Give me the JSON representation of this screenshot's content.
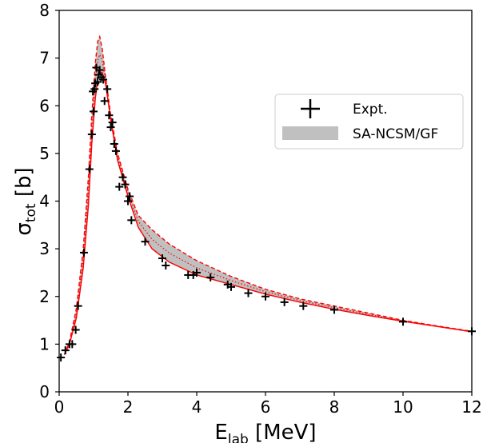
{
  "chart_data": {
    "type": "line",
    "xlabel": {
      "main": "E",
      "sub": "lab",
      "unit": " [MeV]"
    },
    "ylabel": {
      "main": "σ",
      "sub": "tot",
      "unit": " [b]"
    },
    "xlim": [
      0,
      12
    ],
    "ylim": [
      0,
      8
    ],
    "xticks": [
      "0",
      "2",
      "4",
      "6",
      "8",
      "10",
      "12"
    ],
    "yticks": [
      "0",
      "1",
      "2",
      "3",
      "4",
      "5",
      "6",
      "7",
      "8"
    ],
    "grid": false,
    "legend_position": "upper-right",
    "legend": {
      "expt": "Expt.",
      "band": "SA-NCSM/GF"
    },
    "colors": {
      "band": "#c0c0c0",
      "curves": "#ff0000",
      "expt": "#000000"
    },
    "band": {
      "x": [
        0.15,
        0.3,
        0.5,
        0.7,
        0.85,
        0.95,
        1.05,
        1.12,
        1.18,
        1.25,
        1.35,
        1.5,
        1.7,
        2.0,
        2.3,
        2.7,
        3.2,
        4.0,
        5.0,
        6.0,
        7.0,
        8.0,
        9.0,
        10.0,
        11.0,
        12.0
      ],
      "upper": [
        0.78,
        1.05,
        1.75,
        3.0,
        4.5,
        5.8,
        6.9,
        7.35,
        7.45,
        7.2,
        6.6,
        5.8,
        5.0,
        4.25,
        3.7,
        3.4,
        3.1,
        2.75,
        2.42,
        2.15,
        1.95,
        1.8,
        1.65,
        1.5,
        1.38,
        1.27
      ],
      "lower": [
        0.78,
        1.0,
        1.55,
        2.6,
        3.9,
        5.2,
        6.15,
        6.55,
        6.7,
        6.7,
        6.45,
        5.7,
        4.85,
        4.1,
        3.45,
        3.0,
        2.72,
        2.45,
        2.25,
        2.05,
        1.88,
        1.73,
        1.6,
        1.48,
        1.37,
        1.26
      ]
    },
    "expt": [
      {
        "x": 0.05,
        "y": 0.72
      },
      {
        "x": 0.18,
        "y": 0.87
      },
      {
        "x": 0.3,
        "y": 1.0
      },
      {
        "x": 0.38,
        "y": 1.0
      },
      {
        "x": 0.48,
        "y": 1.3
      },
      {
        "x": 0.55,
        "y": 1.8
      },
      {
        "x": 0.72,
        "y": 2.92
      },
      {
        "x": 0.88,
        "y": 4.67
      },
      {
        "x": 0.95,
        "y": 5.4
      },
      {
        "x": 0.98,
        "y": 6.3
      },
      {
        "x": 1.0,
        "y": 5.88
      },
      {
        "x": 1.03,
        "y": 6.35
      },
      {
        "x": 1.05,
        "y": 6.47
      },
      {
        "x": 1.08,
        "y": 6.8
      },
      {
        "x": 1.12,
        "y": 6.5
      },
      {
        "x": 1.15,
        "y": 6.65
      },
      {
        "x": 1.18,
        "y": 6.75
      },
      {
        "x": 1.22,
        "y": 6.6
      },
      {
        "x": 1.28,
        "y": 6.55
      },
      {
        "x": 1.32,
        "y": 6.1
      },
      {
        "x": 1.4,
        "y": 6.35
      },
      {
        "x": 1.45,
        "y": 5.8
      },
      {
        "x": 1.5,
        "y": 5.55
      },
      {
        "x": 1.55,
        "y": 5.65
      },
      {
        "x": 1.6,
        "y": 5.2
      },
      {
        "x": 1.65,
        "y": 5.05
      },
      {
        "x": 1.75,
        "y": 4.3
      },
      {
        "x": 1.85,
        "y": 4.5
      },
      {
        "x": 1.92,
        "y": 4.35
      },
      {
        "x": 2.0,
        "y": 4.0
      },
      {
        "x": 2.05,
        "y": 4.1
      },
      {
        "x": 2.1,
        "y": 3.6
      },
      {
        "x": 2.5,
        "y": 3.15
      },
      {
        "x": 3.0,
        "y": 2.8
      },
      {
        "x": 3.1,
        "y": 2.65
      },
      {
        "x": 3.75,
        "y": 2.45
      },
      {
        "x": 3.9,
        "y": 2.45
      },
      {
        "x": 4.0,
        "y": 2.5
      },
      {
        "x": 4.4,
        "y": 2.4
      },
      {
        "x": 4.9,
        "y": 2.25
      },
      {
        "x": 5.0,
        "y": 2.2
      },
      {
        "x": 5.5,
        "y": 2.07
      },
      {
        "x": 6.0,
        "y": 2.0
      },
      {
        "x": 6.55,
        "y": 1.88
      },
      {
        "x": 7.1,
        "y": 1.8
      },
      {
        "x": 8.0,
        "y": 1.72
      },
      {
        "x": 10.0,
        "y": 1.47
      },
      {
        "x": 12.0,
        "y": 1.27
      }
    ]
  }
}
